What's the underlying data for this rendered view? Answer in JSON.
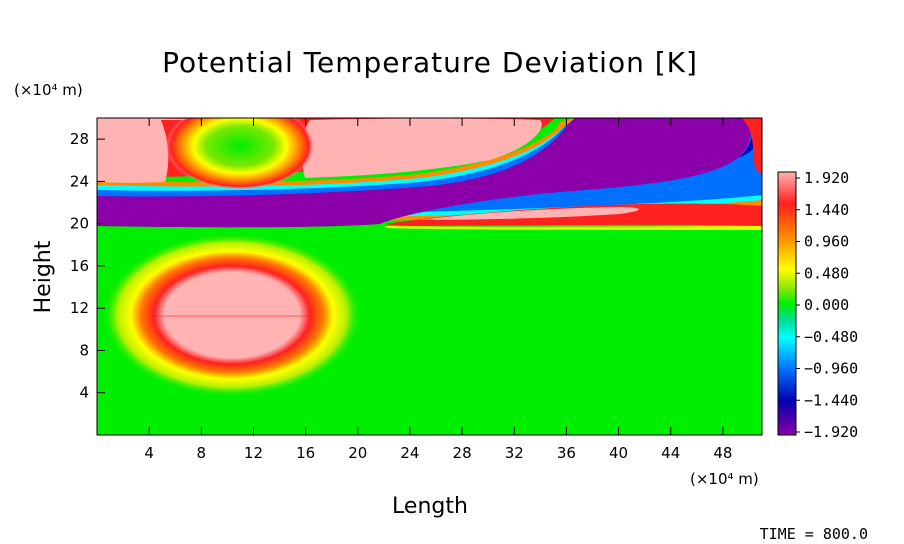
{
  "chart_data": {
    "type": "heatmap",
    "title": "Potential Temperature Deviation [K]",
    "xlabel": "Length",
    "ylabel": "Height",
    "x_unit": "(×10⁴ m)",
    "y_unit": "(×10⁴ m)",
    "xlim": [
      0,
      51
    ],
    "ylim": [
      0,
      30
    ],
    "x_ticks": [
      4,
      8,
      12,
      16,
      20,
      24,
      28,
      32,
      36,
      40,
      44,
      48
    ],
    "y_ticks": [
      4,
      8,
      12,
      16,
      20,
      24,
      28
    ],
    "colorbar": {
      "levels": [
        "1.920",
        "1.440",
        "0.960",
        "0.480",
        "0.000",
        "−0.480",
        "−0.960",
        "−1.440",
        "−1.920"
      ],
      "level_values": [
        1.92,
        1.44,
        0.96,
        0.48,
        0.0,
        -0.48,
        -0.96,
        -1.44,
        -1.92
      ],
      "colors": [
        "#ffb3b3",
        "#ff2020",
        "#ff8c00",
        "#ffff00",
        "#00ee00",
        "#00ffff",
        "#0070ff",
        "#0000b0",
        "#8b00a8"
      ]
    },
    "features": [
      {
        "kind": "warm bubble",
        "center": [
          10.5,
          11.5
        ],
        "radius": [
          9,
          4.5
        ],
        "peak": 1.92
      },
      {
        "kind": "warm layer",
        "x_range": [
          0,
          34
        ],
        "y_range": [
          23.5,
          30
        ],
        "peak": 1.92
      },
      {
        "kind": "neutral pocket",
        "center": [
          10.5,
          27
        ],
        "peak": 0.0
      },
      {
        "kind": "cold band",
        "y_range": [
          20,
          23
        ],
        "peak": -1.92
      },
      {
        "kind": "cold region",
        "x_range": [
          35,
          51
        ],
        "y_range": [
          23,
          30
        ],
        "peak": -1.92
      },
      {
        "kind": "warm lens",
        "x_range": [
          22,
          51
        ],
        "y_range": [
          19.8,
          21.5
        ],
        "peak": 1.92
      }
    ]
  },
  "time_label": "TIME = 800.0"
}
